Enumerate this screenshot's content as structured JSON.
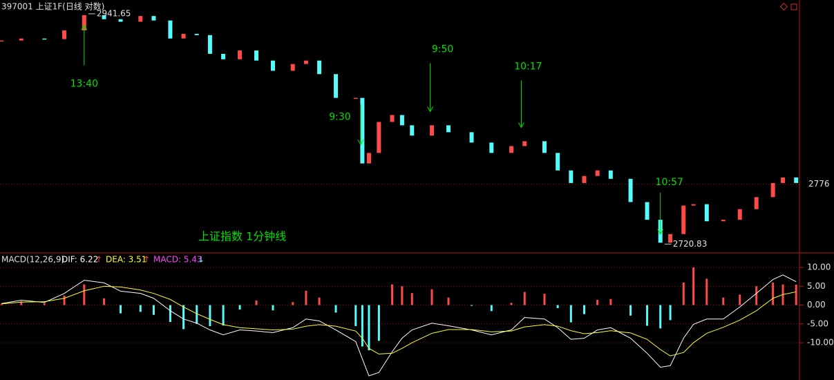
{
  "chart_data": [
    {
      "type": "kline",
      "title": "397001 上证1F(日线 对数)",
      "caption": "上证指数 1分钟线",
      "log_scale": true,
      "up_color": "#ff4a4a",
      "down_color": "#54fcfc",
      "xlim": [
        0,
        241
      ],
      "ylim": [
        2712,
        2957
      ],
      "yticks": [
        2776
      ],
      "grid": true,
      "x": [
        0,
        6,
        13,
        19,
        25,
        31,
        36,
        42,
        46,
        51,
        55,
        59,
        63,
        67,
        72,
        77,
        82,
        88,
        92,
        96,
        101,
        107,
        109,
        111,
        114,
        118,
        121,
        124,
        130,
        135,
        142,
        148,
        154,
        158,
        164,
        168,
        172,
        176,
        180,
        184,
        190,
        195,
        199,
        202,
        206,
        209,
        213,
        218,
        223,
        228,
        233,
        236,
        240
      ],
      "values": [
        2916.2,
        2918.2,
        2917.6,
        2926.3,
        2941.65,
        2937.6,
        2935.0,
        2940.8,
        2936.3,
        2918.2,
        2922.9,
        2921.6,
        2902.9,
        2897.5,
        2906.2,
        2896.2,
        2886.1,
        2892.8,
        2896.2,
        2882.8,
        2859.4,
        2859.4,
        2795.8,
        2805.9,
        2835.9,
        2842.6,
        2832.6,
        2822.6,
        2832.6,
        2825.9,
        2815.9,
        2805.9,
        2812.5,
        2817.2,
        2805.9,
        2789.1,
        2777.1,
        2783.8,
        2789.1,
        2781.1,
        2759.0,
        2742.3,
        2720.83,
        2728.9,
        2755.7,
        2757.0,
        2740.9,
        2742.3,
        2752.3,
        2763.7,
        2777.1,
        2782.4,
        2777.1
      ],
      "annotations": [
        {
          "text": "13:40",
          "x": 25,
          "y": 2931.6,
          "arrow": "up"
        },
        {
          "text": "9:30",
          "x": 108.5,
          "y": 2813.9,
          "arrow": "down"
        },
        {
          "text": "9:50",
          "x": 129.5,
          "y": 2846,
          "arrow": "down"
        },
        {
          "text": "10:17",
          "x": 157,
          "y": 2830.6,
          "arrow": "down"
        },
        {
          "text": "10:57",
          "x": 199,
          "y": 2728.9,
          "arrow": "down"
        }
      ]
    },
    {
      "type": "macd",
      "indicator": "MACD(12,26,9)",
      "xlim": [
        0,
        241
      ],
      "ylim": [
        -19.9,
        13.5
      ],
      "grid": true,
      "yticks": [
        {
          "value": 10,
          "label": "10.00"
        },
        {
          "value": 5,
          "label": "5.00"
        },
        {
          "value": 0,
          "label": "0.00"
        },
        {
          "value": -5,
          "label": "-5.00"
        },
        {
          "value": -10,
          "label": "-10.00"
        }
      ],
      "x": [
        0,
        6,
        13,
        19,
        25,
        31,
        36,
        42,
        46,
        51,
        55,
        59,
        63,
        67,
        72,
        77,
        82,
        88,
        92,
        96,
        101,
        107,
        109,
        111,
        114,
        118,
        121,
        124,
        130,
        135,
        142,
        148,
        154,
        158,
        164,
        168,
        172,
        176,
        180,
        184,
        190,
        195,
        199,
        202,
        206,
        209,
        213,
        218,
        223,
        228,
        233,
        236,
        240
      ],
      "series": [
        {
          "name": "DIF: 6.22",
          "arrow": "↑",
          "color": "#ffffff",
          "arrow_color": "#ff4a4a",
          "values": [
            0.4,
            1.3,
            0.7,
            3.1,
            6.6,
            5.9,
            3.7,
            3.1,
            1.8,
            -1.5,
            -3.7,
            -4.8,
            -6.6,
            -7.9,
            -6.6,
            -6.9,
            -7.3,
            -6.0,
            -3.7,
            -4.2,
            -6.6,
            -9.7,
            -14.3,
            -18.8,
            -17.9,
            -12.4,
            -8.8,
            -6.6,
            -4.8,
            -5.5,
            -6.6,
            -7.9,
            -6.6,
            -3.3,
            -3.7,
            -6.0,
            -9.1,
            -8.8,
            -6.6,
            -6.0,
            -8.8,
            -12.8,
            -16.5,
            -16.1,
            -8.8,
            -5.1,
            -3.7,
            -3.7,
            -0.5,
            3.1,
            6.8,
            8.0,
            6.22
          ]
        },
        {
          "name": "DEA: 3.51",
          "arrow": "↑",
          "color": "#ffff33",
          "arrow_color": "#ff4a4a",
          "values": [
            0.3,
            0.8,
            0.9,
            1.8,
            3.8,
            5.0,
            4.8,
            4.0,
            3.1,
            1.5,
            -0.5,
            -2.3,
            -3.8,
            -5.2,
            -6.0,
            -6.3,
            -6.6,
            -6.4,
            -5.6,
            -5.2,
            -5.6,
            -6.9,
            -8.8,
            -11.5,
            -13.0,
            -12.8,
            -11.5,
            -10.0,
            -7.5,
            -6.5,
            -6.5,
            -7.1,
            -6.9,
            -5.8,
            -5.2,
            -5.6,
            -6.8,
            -7.6,
            -7.3,
            -6.8,
            -7.4,
            -9.1,
            -11.8,
            -13.5,
            -12.6,
            -10.0,
            -7.5,
            -5.9,
            -4.0,
            -1.5,
            1.8,
            2.8,
            3.51
          ]
        },
        {
          "name": "MACD: 5.43",
          "arrow": "↓",
          "color": "#ff44ff",
          "arrow_color": "#54fcfc",
          "up_color": "#ff4a4a",
          "down_color": "#54fcfc",
          "values": [
            0.2,
            1.0,
            0.5,
            2.5,
            5.5,
            1.8,
            -2.2,
            -1.8,
            -2.6,
            -4.5,
            -6.4,
            -5.0,
            -5.6,
            -5.4,
            -1.2,
            1.2,
            -1.4,
            0.8,
            3.8,
            2.0,
            -2.0,
            -5.6,
            -11.0,
            -12.0,
            -9.5,
            5.5,
            5.0,
            3.2,
            4.2,
            2.0,
            -0.2,
            -1.6,
            0.6,
            3.5,
            3.0,
            -0.8,
            -4.6,
            -2.4,
            1.4,
            1.6,
            -2.8,
            -5.5,
            -6.2,
            -4.0,
            6.0,
            10.0,
            7.0,
            2.0,
            2.8,
            5.0,
            6.0,
            5.5,
            5.43
          ]
        }
      ]
    }
  ]
}
